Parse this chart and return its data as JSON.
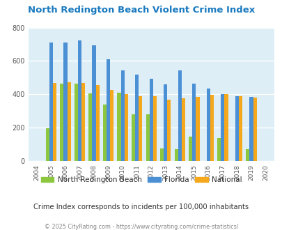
{
  "title": "North Redington Beach Violent Crime Index",
  "years": [
    2004,
    2005,
    2006,
    2007,
    2008,
    2009,
    2010,
    2011,
    2012,
    2013,
    2014,
    2015,
    2016,
    2017,
    2018,
    2019,
    2020
  ],
  "north_redington": [
    0,
    195,
    465,
    465,
    405,
    340,
    410,
    280,
    280,
    75,
    70,
    145,
    0,
    140,
    0,
    70,
    0
  ],
  "florida": [
    0,
    710,
    710,
    725,
    693,
    612,
    543,
    518,
    493,
    460,
    545,
    463,
    435,
    403,
    388,
    383,
    0
  ],
  "national": [
    0,
    467,
    473,
    468,
    455,
    428,
    400,
    389,
    388,
    368,
    375,
    383,
    398,
    401,
    387,
    379,
    0
  ],
  "color_nrb": "#8dc63f",
  "color_fl": "#4b8fd5",
  "color_nat": "#f5a81c",
  "ylim": [
    0,
    800
  ],
  "yticks": [
    0,
    200,
    400,
    600,
    800
  ],
  "bg_color": "#ddeef6",
  "subtitle": "Crime Index corresponds to incidents per 100,000 inhabitants",
  "footer": "© 2025 CityRating.com - https://www.cityrating.com/crime-statistics/",
  "legend_labels": [
    "North Redington Beach",
    "Florida",
    "National"
  ],
  "title_color": "#1a7abf",
  "subtitle_color": "#333333",
  "footer_color": "#888888"
}
